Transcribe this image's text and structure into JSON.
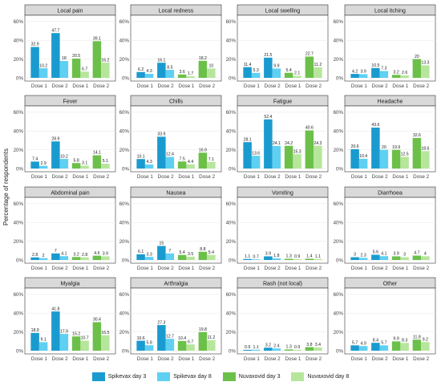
{
  "chart_data": {
    "type": "bar",
    "ylabel": "Percentage of respondents",
    "ylim": [
      0,
      65
    ],
    "yticks": [
      "0%",
      "20%",
      "40%",
      "60%"
    ],
    "categories": [
      "Dose 1",
      "Dose 2",
      "Dose 1",
      "Dose 2"
    ],
    "series": [
      {
        "name": "Spikevax day 3",
        "color": "#1a9bd0"
      },
      {
        "name": "Spikevax day 8",
        "color": "#5fd0f2"
      },
      {
        "name": "Nuvaxovid day 3",
        "color": "#6cc04a"
      },
      {
        "name": "Nuvaxovid day 8",
        "color": "#b6e69b"
      }
    ],
    "panels": [
      {
        "title": "Local pain",
        "values": [
          32.9,
          10.2,
          47.7,
          18,
          20.5,
          6.7,
          39.1,
          16.2
        ],
        "labels": [
          "32.9",
          "10.2",
          "47.7",
          "18",
          "20.5",
          "6.7",
          "39.1",
          "16.2"
        ]
      },
      {
        "title": "Local redness",
        "values": [
          6.2,
          4.3,
          16.1,
          8.5,
          3.6,
          1.7,
          18.2,
          10
        ],
        "labels": [
          "6.2",
          "4.3",
          "16.1",
          "8.5",
          "3.6",
          "1.7",
          "18.2",
          "10"
        ]
      },
      {
        "title": "Local swelling",
        "values": [
          11.4,
          5.3,
          21.5,
          9.9,
          5.4,
          2.1,
          22.7,
          11.2
        ],
        "labels": [
          "11.4",
          "5.3",
          "21.5",
          "9.9",
          "5.4",
          "2.1",
          "22.7",
          "11.2"
        ]
      },
      {
        "title": "Local itching",
        "values": [
          4.2,
          3.9,
          10.5,
          7.3,
          3.2,
          2.6,
          20,
          13.3
        ],
        "labels": [
          "4.2",
          "3.9",
          "10.5",
          "7.3",
          "3.2",
          "2.6",
          "20",
          "13.3"
        ]
      },
      {
        "title": "Fever",
        "values": [
          7.4,
          2.9,
          28.9,
          10.2,
          5.8,
          3.1,
          14.1,
          5.1
        ],
        "labels": [
          "7.4",
          "2.9",
          "28.9",
          "10.2",
          "5.8",
          "3.1",
          "14.1",
          "5.1"
        ]
      },
      {
        "title": "Chills",
        "values": [
          10.1,
          4.3,
          33.9,
          12.4,
          7.5,
          4.4,
          16.9,
          7.1
        ],
        "labels": [
          "10.1",
          "4.3",
          "33.9",
          "12.4",
          "7.5",
          "4.4",
          "16.9",
          "7.1"
        ]
      },
      {
        "title": "Fatigue",
        "values": [
          28.1,
          13.6,
          52.4,
          24.1,
          24.2,
          15.3,
          40.6,
          24.3
        ],
        "labels": [
          "28.1",
          "13.6",
          "52.4",
          "24.1",
          "24.2",
          "15.3",
          "40.6",
          "24.3"
        ]
      },
      {
        "title": "Headache",
        "values": [
          20.6,
          10.4,
          43.6,
          20,
          19.9,
          12.5,
          32.6,
          18.6
        ],
        "labels": [
          "20.6",
          "10.4",
          "43.6",
          "20",
          "19.9",
          "12.5",
          "32.6",
          "18.6"
        ]
      },
      {
        "title": "Abdominal pain",
        "values": [
          2.8,
          2,
          7,
          4.1,
          3.2,
          2.8,
          4.6,
          3.9
        ],
        "labels": [
          "2.8",
          "2",
          "7",
          "4.1",
          "3.2",
          "2.8",
          "4.6",
          "3.9"
        ]
      },
      {
        "title": "Nausea",
        "values": [
          6.1,
          3.3,
          15,
          7,
          5.4,
          3.5,
          8.8,
          5.4
        ],
        "labels": [
          "6.1",
          "3.3",
          "15",
          "7",
          "5.4",
          "3.5",
          "8.8",
          "5.4"
        ]
      },
      {
        "title": "Vomiting",
        "values": [
          1.1,
          0.7,
          3.9,
          1.8,
          1.3,
          0.9,
          1.4,
          1.1
        ],
        "labels": [
          "1.1",
          "0.7",
          "3.9",
          "1.8",
          "1.3",
          "0.9",
          "1.4",
          "1.1"
        ]
      },
      {
        "title": "Diarrhoea",
        "values": [
          3,
          2.3,
          5.6,
          4.1,
          3.9,
          3,
          4.7,
          4
        ],
        "labels": [
          "3",
          "2.3",
          "5.6",
          "4.1",
          "3.9",
          "3",
          "4.7",
          "4"
        ]
      },
      {
        "title": "Myalgia",
        "values": [
          18.9,
          9.1,
          41.8,
          17.9,
          15.2,
          10.7,
          30.4,
          16.5
        ],
        "labels": [
          "18.9",
          "9.1",
          "41.8",
          "17.9",
          "15.2",
          "10.7",
          "30.4",
          "16.5"
        ]
      },
      {
        "title": "Arthralgia",
        "values": [
          10.6,
          5.8,
          27.3,
          12.7,
          10.4,
          6.7,
          19.8,
          11.2
        ],
        "labels": [
          "10.6",
          "5.8",
          "27.3",
          "12.7",
          "10.4",
          "6.7",
          "19.8",
          "11.2"
        ]
      },
      {
        "title": "Rash (not local)",
        "values": [
          0.9,
          1.1,
          3.2,
          2.4,
          1.3,
          0.9,
          3.8,
          3.4
        ],
        "labels": [
          "0.9",
          "1.1",
          "3.2",
          "2.4",
          "1.3",
          "0.9",
          "3.8",
          "3.4"
        ]
      },
      {
        "title": "Other",
        "values": [
          5.7,
          4.9,
          8.4,
          5.7,
          9.9,
          8.3,
          11.8,
          9.2
        ],
        "labels": [
          "5.7",
          "4.9",
          "8.4",
          "5.7",
          "9.9",
          "8.3",
          "11.8",
          "9.2"
        ]
      }
    ],
    "grid": true,
    "legend_position": "bottom"
  }
}
